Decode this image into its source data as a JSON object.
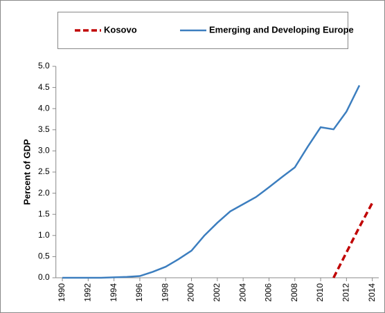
{
  "chart_data": {
    "type": "line",
    "ylabel": "Percent of GDP",
    "x": [
      1990,
      1991,
      1992,
      1993,
      1994,
      1995,
      1996,
      1997,
      1998,
      1999,
      2000,
      2001,
      2002,
      2003,
      2004,
      2005,
      2006,
      2007,
      2008,
      2009,
      2010,
      2011,
      2012,
      2013,
      2014
    ],
    "series": [
      {
        "name": "Kosovo",
        "color": "#c00000",
        "dash": true,
        "values": [
          null,
          null,
          null,
          null,
          null,
          null,
          null,
          null,
          null,
          null,
          null,
          null,
          null,
          null,
          null,
          null,
          null,
          null,
          null,
          null,
          null,
          0,
          0.6,
          1.2,
          1.77
        ]
      },
      {
        "name": "Emerging and Developing Europe",
        "color": "#3c7ebf",
        "dash": false,
        "values": [
          0,
          0,
          0,
          0,
          0.01,
          0.02,
          0.04,
          0.14,
          0.26,
          0.44,
          0.64,
          1.0,
          1.3,
          1.57,
          1.74,
          1.91,
          2.14,
          2.38,
          2.61,
          3.1,
          3.56,
          3.51,
          3.93,
          4.55,
          null
        ]
      }
    ],
    "xlim": [
      1989.5,
      2014.5
    ],
    "xticks": [
      1990,
      1992,
      1994,
      1996,
      1998,
      2000,
      2002,
      2004,
      2006,
      2008,
      2010,
      2012,
      2014
    ],
    "ylim": [
      0,
      5
    ],
    "yticks": [
      {
        "value": 0,
        "label": "0.0"
      },
      {
        "value": 0.5,
        "label": "0.5"
      },
      {
        "value": 1,
        "label": "1.0"
      },
      {
        "value": 1.5,
        "label": "1.5"
      },
      {
        "value": 2,
        "label": "2.0"
      },
      {
        "value": 2.5,
        "label": "2.5"
      },
      {
        "value": 3,
        "label": "3.0"
      },
      {
        "value": 3.5,
        "label": "3.5"
      },
      {
        "value": 4,
        "label": "4.0"
      },
      {
        "value": 4.5,
        "label": "4.5"
      },
      {
        "value": 5,
        "label": "5.0"
      }
    ],
    "legend": "top"
  }
}
